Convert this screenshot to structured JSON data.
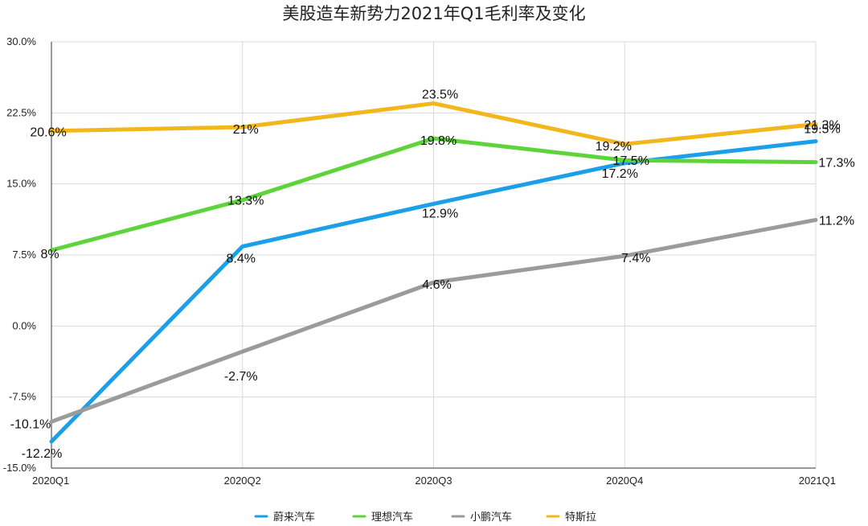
{
  "chart_data": {
    "type": "line",
    "title": "美股造车新势力2021年Q1毛利率及变化",
    "categories": [
      "2020Q1",
      "2020Q2",
      "2020Q3",
      "2020Q4",
      "2021Q1"
    ],
    "ylim": [
      -15,
      30
    ],
    "yticks": [
      30,
      22.5,
      15,
      7.5,
      0,
      -7.5,
      -15
    ],
    "ytick_labels": [
      "30.0%",
      "22.5%",
      "15.0%",
      "7.5%",
      "0.0%",
      "-7.5%",
      "-15.0%"
    ],
    "grid": true,
    "legend_position": "bottom",
    "series": [
      {
        "name": "蔚来汽车",
        "color": "#1a9fe8",
        "values": [
          -12.2,
          8.4,
          12.9,
          17.2,
          19.5
        ],
        "labels": [
          "-12.2%",
          "8.4%",
          "12.9%",
          "17.2%",
          "19.5%"
        ]
      },
      {
        "name": "理想汽车",
        "color": "#5ed43b",
        "values": [
          8,
          13.3,
          19.8,
          17.5,
          17.3
        ],
        "labels": [
          "8%",
          "13.3%",
          "19.8%",
          "17.5%",
          "17.3%"
        ]
      },
      {
        "name": "小鹏汽车",
        "color": "#9b9b9b",
        "values": [
          -10.1,
          -2.7,
          4.6,
          7.4,
          11.2
        ],
        "labels": [
          "-10.1%",
          "-2.7%",
          "4.6%",
          "7.4%",
          "11.2%"
        ]
      },
      {
        "name": "特斯拉",
        "color": "#f2b71c",
        "values": [
          20.6,
          21,
          23.5,
          19.2,
          21.3
        ],
        "labels": [
          "20.6%",
          "21%",
          "23.5%",
          "19.2%",
          "21.3%"
        ]
      }
    ]
  }
}
